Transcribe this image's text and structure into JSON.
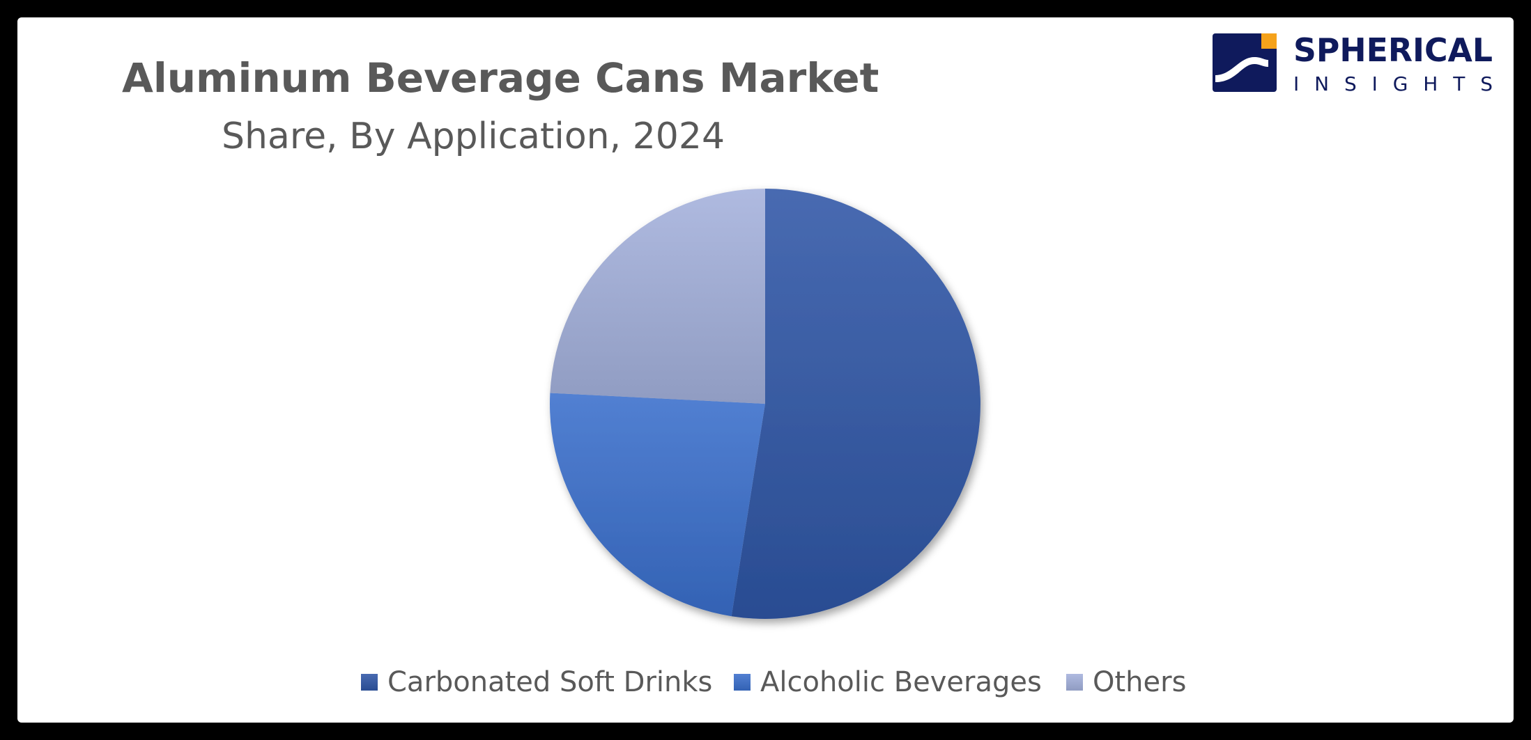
{
  "header": {
    "title": "Aluminum Beverage Cans Market",
    "subtitle": "Share, By Application, 2024"
  },
  "logo": {
    "line1": "SPHERICAL",
    "line2": "INSIGHTS",
    "colors": {
      "navy": "#0f1a5c",
      "orange": "#f5a21b"
    }
  },
  "chart_data": {
    "type": "pie",
    "title": "Aluminum Beverage Cans Market",
    "subtitle": "Share, By Application, 2024",
    "categories": [
      "Carbonated Soft Drinks",
      "Alcoholic Beverages",
      "Others"
    ],
    "values": [
      52.5,
      23.3,
      24.2
    ],
    "unit": "%",
    "colors": [
      "#2f56a6",
      "#3a6fcc",
      "#a4b1dc"
    ],
    "legend_position": "bottom",
    "start_angle": "12 o'clock",
    "direction": "clockwise"
  }
}
